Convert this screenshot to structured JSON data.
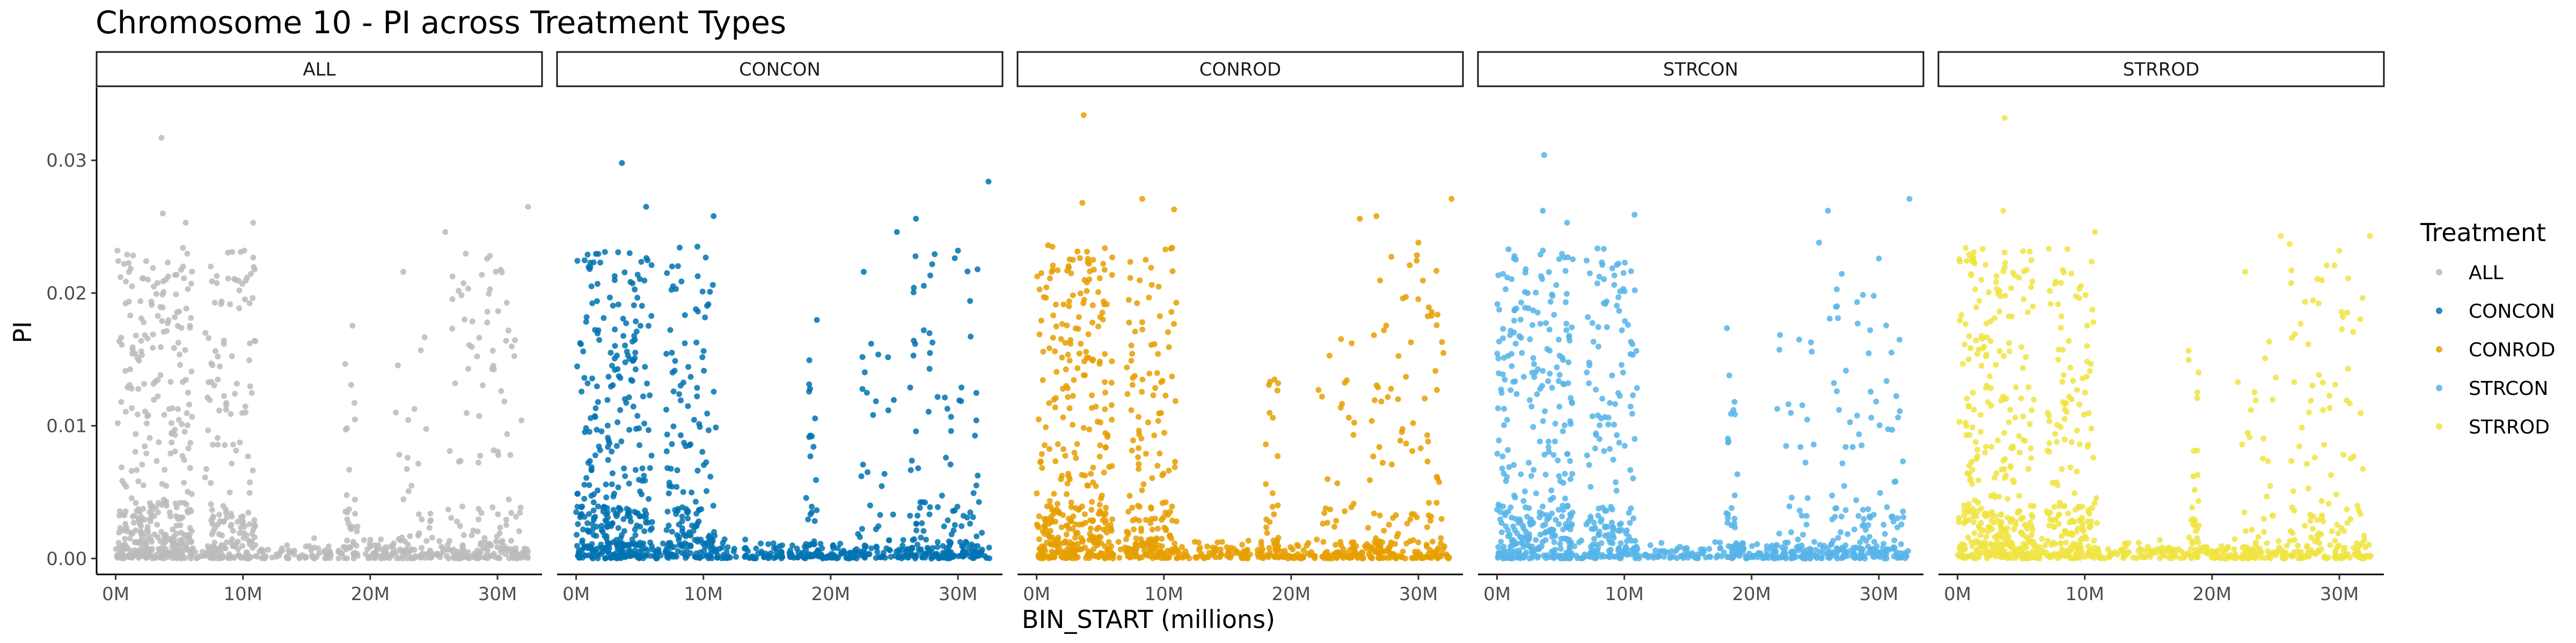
{
  "chart_data": {
    "type": "scatter",
    "title": "Chromosome 10 - PI across Treatment Types",
    "xlabel": "BIN_START (millions)",
    "ylabel": "PI",
    "xlim": [
      -1.5,
      33.5
    ],
    "ylim": [
      -0.0012,
      0.0355
    ],
    "x_ticks": [
      0,
      10,
      20,
      30
    ],
    "x_tick_labels": [
      "0M",
      "10M",
      "20M",
      "30M"
    ],
    "y_ticks": [
      0.0,
      0.01,
      0.02,
      0.03
    ],
    "y_tick_labels": [
      "0.00",
      "0.01",
      "0.02",
      "0.03"
    ],
    "grid": false,
    "facet_by": "Treatment",
    "legend": {
      "title": "Treatment",
      "position": "right",
      "entries": [
        "ALL",
        "CONCON",
        "CONROD",
        "STRCON",
        "STRROD"
      ]
    },
    "panels": [
      {
        "label": "ALL",
        "color": "#BBBBBB",
        "clusters": [
          {
            "x": [
              0,
              3
            ],
            "density": "dense"
          },
          {
            "x": [
              3,
              6
            ],
            "density": "dense"
          },
          {
            "x": [
              7,
              11
            ],
            "density": "dense"
          },
          {
            "x": [
              18,
              19
            ],
            "density": "sparse"
          },
          {
            "x": [
              22,
              25
            ],
            "density": "sparse"
          },
          {
            "x": [
              26,
              32
            ],
            "density": "medium"
          }
        ],
        "outliers": [
          {
            "x": 3.6,
            "y": 0.0317
          },
          {
            "x": 32.4,
            "y": 0.0265
          },
          {
            "x": 3.7,
            "y": 0.026
          },
          {
            "x": 10.8,
            "y": 0.0253
          },
          {
            "x": 5.5,
            "y": 0.0253
          },
          {
            "x": 25.9,
            "y": 0.0246
          },
          {
            "x": 0.9,
            "y": 0.0229
          },
          {
            "x": 29.4,
            "y": 0.0228
          },
          {
            "x": 22.6,
            "y": 0.0216
          }
        ]
      },
      {
        "label": "CONCON",
        "color": "#0072B2",
        "clusters": [
          {
            "x": [
              0,
              3
            ],
            "density": "dense"
          },
          {
            "x": [
              3,
              6
            ],
            "density": "dense"
          },
          {
            "x": [
              7,
              11
            ],
            "density": "dense"
          },
          {
            "x": [
              18,
              19
            ],
            "density": "sparse"
          },
          {
            "x": [
              22,
              25
            ],
            "density": "sparse"
          },
          {
            "x": [
              26,
              32
            ],
            "density": "medium"
          }
        ],
        "outliers": [
          {
            "x": 3.6,
            "y": 0.0298
          },
          {
            "x": 32.4,
            "y": 0.0284
          },
          {
            "x": 5.5,
            "y": 0.0265
          },
          {
            "x": 10.8,
            "y": 0.0258
          },
          {
            "x": 26.7,
            "y": 0.0256
          },
          {
            "x": 25.2,
            "y": 0.0246
          },
          {
            "x": 30.0,
            "y": 0.0232
          },
          {
            "x": 0.9,
            "y": 0.0229
          },
          {
            "x": 22.6,
            "y": 0.0216
          }
        ]
      },
      {
        "label": "CONROD",
        "color": "#E69F00",
        "clusters": [
          {
            "x": [
              0,
              3
            ],
            "density": "dense"
          },
          {
            "x": [
              3,
              6
            ],
            "density": "dense"
          },
          {
            "x": [
              7,
              11
            ],
            "density": "dense"
          },
          {
            "x": [
              18,
              19
            ],
            "density": "sparse"
          },
          {
            "x": [
              22,
              25
            ],
            "density": "sparse"
          },
          {
            "x": [
              26,
              32
            ],
            "density": "medium"
          }
        ],
        "outliers": [
          {
            "x": 3.7,
            "y": 0.0334
          },
          {
            "x": 32.6,
            "y": 0.0271
          },
          {
            "x": 8.3,
            "y": 0.0271
          },
          {
            "x": 3.6,
            "y": 0.0268
          },
          {
            "x": 10.8,
            "y": 0.0263
          },
          {
            "x": 26.7,
            "y": 0.0258
          },
          {
            "x": 25.4,
            "y": 0.0256
          },
          {
            "x": 30.0,
            "y": 0.0238
          },
          {
            "x": 0.9,
            "y": 0.0236
          }
        ]
      },
      {
        "label": "STRCON",
        "color": "#56B4E9",
        "clusters": [
          {
            "x": [
              0,
              3
            ],
            "density": "dense"
          },
          {
            "x": [
              3,
              6
            ],
            "density": "dense"
          },
          {
            "x": [
              7,
              11
            ],
            "density": "dense"
          },
          {
            "x": [
              18,
              19
            ],
            "density": "sparse"
          },
          {
            "x": [
              22,
              25
            ],
            "density": "sparse"
          },
          {
            "x": [
              26,
              32
            ],
            "density": "medium"
          }
        ],
        "outliers": [
          {
            "x": 3.7,
            "y": 0.0304
          },
          {
            "x": 32.4,
            "y": 0.0271
          },
          {
            "x": 26.0,
            "y": 0.0262
          },
          {
            "x": 3.6,
            "y": 0.0262
          },
          {
            "x": 10.8,
            "y": 0.0259
          },
          {
            "x": 5.5,
            "y": 0.0253
          },
          {
            "x": 25.3,
            "y": 0.0238
          },
          {
            "x": 0.9,
            "y": 0.0233
          },
          {
            "x": 30.0,
            "y": 0.0226
          }
        ]
      },
      {
        "label": "STRROD",
        "color": "#F0E442",
        "clusters": [
          {
            "x": [
              0,
              3
            ],
            "density": "dense"
          },
          {
            "x": [
              3,
              6
            ],
            "density": "dense"
          },
          {
            "x": [
              7,
              11
            ],
            "density": "dense"
          },
          {
            "x": [
              18,
              19
            ],
            "density": "sparse"
          },
          {
            "x": [
              22,
              25
            ],
            "density": "sparse"
          },
          {
            "x": [
              26,
              32
            ],
            "density": "medium"
          }
        ],
        "outliers": [
          {
            "x": 3.7,
            "y": 0.0332
          },
          {
            "x": 3.6,
            "y": 0.0262
          },
          {
            "x": 32.4,
            "y": 0.0243
          },
          {
            "x": 10.8,
            "y": 0.0246
          },
          {
            "x": 26.1,
            "y": 0.0237
          },
          {
            "x": 25.4,
            "y": 0.0243
          },
          {
            "x": 0.9,
            "y": 0.0229
          },
          {
            "x": 30.0,
            "y": 0.0232
          },
          {
            "x": 22.6,
            "y": 0.0216
          }
        ]
      }
    ]
  }
}
